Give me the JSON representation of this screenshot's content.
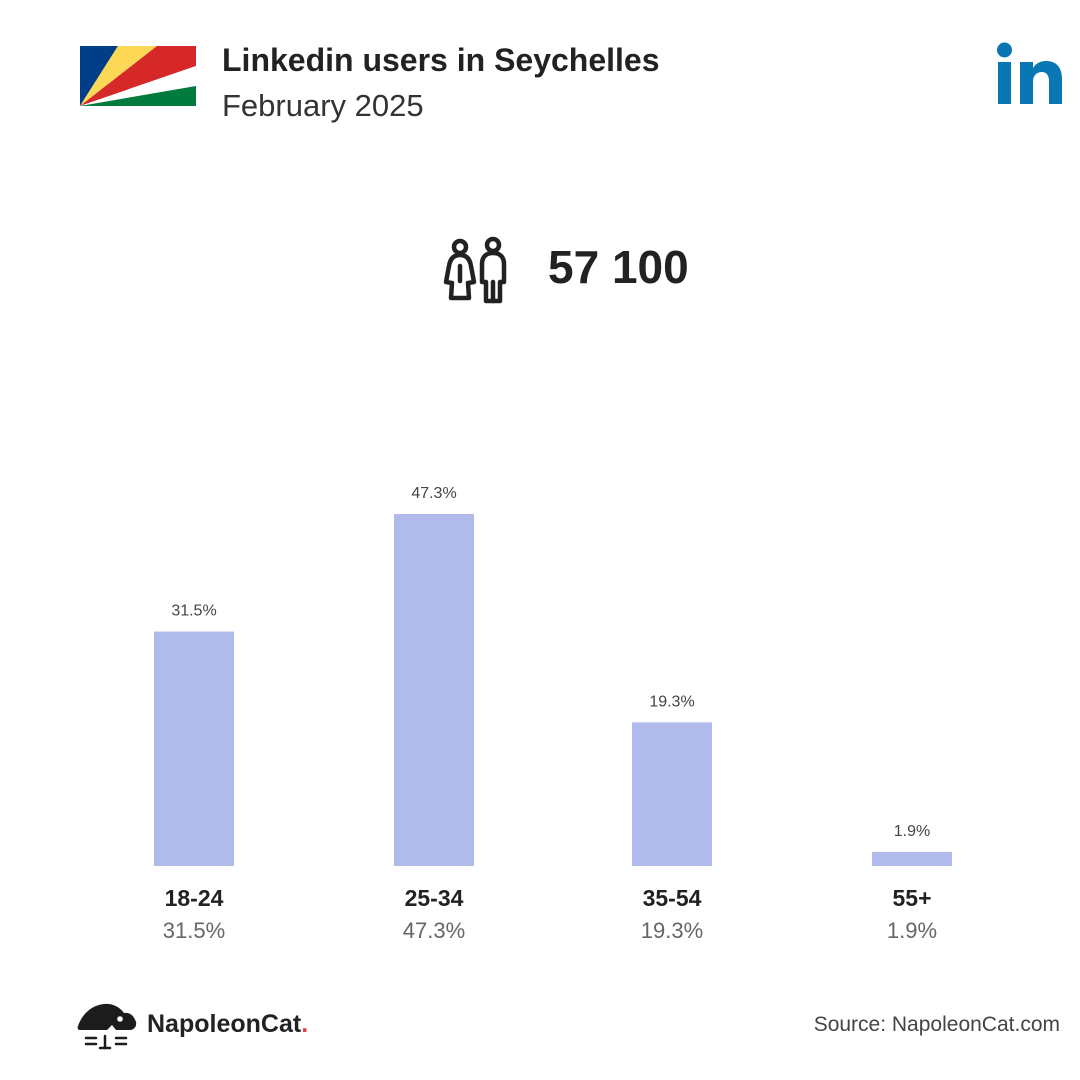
{
  "header": {
    "title": "Linkedin users in Seychelles",
    "subtitle": "February 2025",
    "flag_icon": "seychelles-flag-icon",
    "brand_icon": "linkedin-logo-icon"
  },
  "summary": {
    "icon": "users-icon",
    "total": "57 100"
  },
  "colors": {
    "bar": "#b0bbec",
    "linkedin": "#0a77b5",
    "text_dark": "#222222",
    "text_muted": "#666666"
  },
  "chart_data": {
    "type": "bar",
    "categories": [
      "18-24",
      "25-34",
      "35-54",
      "55+"
    ],
    "values": [
      31.5,
      47.3,
      19.3,
      1.9
    ],
    "value_labels": [
      "31.5%",
      "47.3%",
      "19.3%",
      "1.9%"
    ],
    "title": "",
    "xlabel": "",
    "ylabel": "",
    "ylim": [
      0,
      47.3
    ],
    "grid": false,
    "legend": "none"
  },
  "footer": {
    "brand_name": "NapoleonCat",
    "brand_dot": ".",
    "brand_icon": "napoleoncat-logo-icon",
    "source": "Source: NapoleonCat.com"
  }
}
